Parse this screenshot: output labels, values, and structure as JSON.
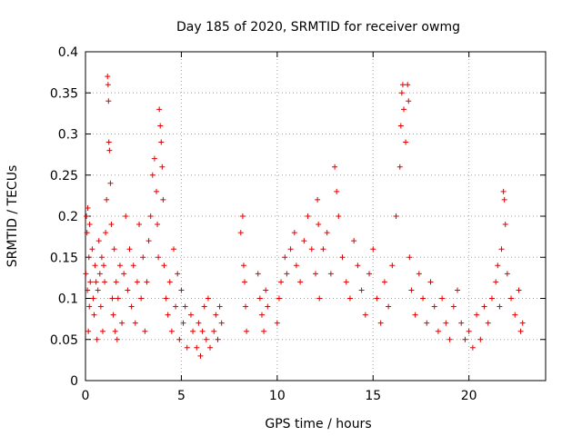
{
  "chart_data": {
    "type": "scatter",
    "title": "Day 185 of 2020, SRMTID for receiver owmg",
    "xlabel": "GPS time / hours",
    "ylabel": "SRMTID / TECUs",
    "xlim": [
      0,
      24
    ],
    "ylim": [
      0,
      0.4
    ],
    "xticks": [
      0,
      5,
      10,
      15,
      20
    ],
    "xtick_labels": [
      "0",
      "5",
      "10",
      "15",
      "20"
    ],
    "yticks": [
      0,
      0.05,
      0.1,
      0.15,
      0.2,
      0.25,
      0.3,
      0.35,
      0.4
    ],
    "ytick_labels": [
      "0",
      "0.05",
      "0.1",
      "0.15",
      "0.2",
      "0.25",
      "0.3",
      "0.35",
      "0.4"
    ],
    "grid": true,
    "marker": "+",
    "color": "#e00000",
    "series": [
      {
        "name": "SRMTID",
        "points": [
          [
            0.02,
            0.13
          ],
          [
            0.05,
            0.2
          ],
          [
            0.08,
            0.18
          ],
          [
            0.1,
            0.11
          ],
          [
            0.12,
            0.21
          ],
          [
            0.15,
            0.06
          ],
          [
            0.18,
            0.15
          ],
          [
            0.2,
            0.09
          ],
          [
            0.22,
            0.19
          ],
          [
            0.25,
            0.12
          ],
          [
            0.35,
            0.16
          ],
          [
            0.4,
            0.1
          ],
          [
            0.45,
            0.08
          ],
          [
            0.5,
            0.14
          ],
          [
            0.55,
            0.12
          ],
          [
            0.6,
            0.05
          ],
          [
            0.65,
            0.11
          ],
          [
            0.7,
            0.17
          ],
          [
            0.75,
            0.13
          ],
          [
            0.8,
            0.09
          ],
          [
            0.85,
            0.15
          ],
          [
            0.9,
            0.06
          ],
          [
            0.95,
            0.14
          ],
          [
            1.0,
            0.12
          ],
          [
            1.05,
            0.18
          ],
          [
            1.1,
            0.22
          ],
          [
            1.15,
            0.37
          ],
          [
            1.18,
            0.36
          ],
          [
            1.2,
            0.34
          ],
          [
            1.22,
            0.29
          ],
          [
            1.25,
            0.28
          ],
          [
            1.3,
            0.24
          ],
          [
            1.35,
            0.19
          ],
          [
            1.4,
            0.1
          ],
          [
            1.45,
            0.08
          ],
          [
            1.5,
            0.16
          ],
          [
            1.55,
            0.06
          ],
          [
            1.6,
            0.12
          ],
          [
            1.65,
            0.05
          ],
          [
            1.7,
            0.1
          ],
          [
            1.8,
            0.14
          ],
          [
            1.9,
            0.07
          ],
          [
            2.0,
            0.13
          ],
          [
            2.1,
            0.2
          ],
          [
            2.2,
            0.11
          ],
          [
            2.3,
            0.16
          ],
          [
            2.4,
            0.09
          ],
          [
            2.5,
            0.14
          ],
          [
            2.6,
            0.07
          ],
          [
            2.7,
            0.12
          ],
          [
            2.8,
            0.19
          ],
          [
            2.9,
            0.1
          ],
          [
            3.0,
            0.15
          ],
          [
            3.1,
            0.06
          ],
          [
            3.2,
            0.12
          ],
          [
            3.3,
            0.17
          ],
          [
            3.4,
            0.2
          ],
          [
            3.5,
            0.25
          ],
          [
            3.6,
            0.27
          ],
          [
            3.7,
            0.23
          ],
          [
            3.75,
            0.19
          ],
          [
            3.8,
            0.15
          ],
          [
            3.85,
            0.33
          ],
          [
            3.9,
            0.31
          ],
          [
            3.95,
            0.29
          ],
          [
            4.0,
            0.26
          ],
          [
            4.05,
            0.22
          ],
          [
            4.1,
            0.14
          ],
          [
            4.2,
            0.1
          ],
          [
            4.3,
            0.08
          ],
          [
            4.4,
            0.12
          ],
          [
            4.5,
            0.06
          ],
          [
            4.6,
            0.16
          ],
          [
            4.7,
            0.09
          ],
          [
            4.8,
            0.13
          ],
          [
            4.9,
            0.05
          ],
          [
            5.0,
            0.11
          ],
          [
            5.1,
            0.07
          ],
          [
            5.2,
            0.09
          ],
          [
            5.3,
            0.04
          ],
          [
            5.5,
            0.08
          ],
          [
            5.6,
            0.06
          ],
          [
            5.8,
            0.04
          ],
          [
            5.9,
            0.07
          ],
          [
            6.0,
            0.03
          ],
          [
            6.1,
            0.06
          ],
          [
            6.2,
            0.09
          ],
          [
            6.3,
            0.05
          ],
          [
            6.4,
            0.1
          ],
          [
            6.5,
            0.04
          ],
          [
            6.7,
            0.06
          ],
          [
            6.8,
            0.08
          ],
          [
            6.9,
            0.05
          ],
          [
            7.0,
            0.09
          ],
          [
            7.1,
            0.07
          ],
          [
            8.1,
            0.18
          ],
          [
            8.2,
            0.2
          ],
          [
            8.25,
            0.14
          ],
          [
            8.3,
            0.12
          ],
          [
            8.35,
            0.09
          ],
          [
            8.4,
            0.06
          ],
          [
            9.0,
            0.13
          ],
          [
            9.1,
            0.1
          ],
          [
            9.2,
            0.08
          ],
          [
            9.3,
            0.06
          ],
          [
            9.4,
            0.11
          ],
          [
            9.5,
            0.09
          ],
          [
            10.0,
            0.07
          ],
          [
            10.1,
            0.1
          ],
          [
            10.2,
            0.12
          ],
          [
            10.4,
            0.15
          ],
          [
            10.5,
            0.13
          ],
          [
            10.7,
            0.16
          ],
          [
            10.9,
            0.18
          ],
          [
            11.0,
            0.14
          ],
          [
            11.2,
            0.12
          ],
          [
            11.4,
            0.17
          ],
          [
            11.6,
            0.2
          ],
          [
            11.8,
            0.16
          ],
          [
            12.0,
            0.13
          ],
          [
            12.1,
            0.22
          ],
          [
            12.15,
            0.19
          ],
          [
            12.2,
            0.1
          ],
          [
            12.4,
            0.16
          ],
          [
            12.6,
            0.18
          ],
          [
            12.8,
            0.13
          ],
          [
            13.0,
            0.26
          ],
          [
            13.1,
            0.23
          ],
          [
            13.2,
            0.2
          ],
          [
            13.4,
            0.15
          ],
          [
            13.6,
            0.12
          ],
          [
            13.8,
            0.1
          ],
          [
            14.0,
            0.17
          ],
          [
            14.2,
            0.14
          ],
          [
            14.4,
            0.11
          ],
          [
            14.6,
            0.08
          ],
          [
            14.8,
            0.13
          ],
          [
            15.0,
            0.16
          ],
          [
            15.2,
            0.1
          ],
          [
            15.4,
            0.07
          ],
          [
            15.6,
            0.12
          ],
          [
            15.8,
            0.09
          ],
          [
            16.0,
            0.14
          ],
          [
            16.2,
            0.2
          ],
          [
            16.4,
            0.26
          ],
          [
            16.45,
            0.31
          ],
          [
            16.5,
            0.35
          ],
          [
            16.55,
            0.36
          ],
          [
            16.6,
            0.33
          ],
          [
            16.7,
            0.29
          ],
          [
            16.8,
            0.36
          ],
          [
            16.85,
            0.34
          ],
          [
            16.9,
            0.15
          ],
          [
            17.0,
            0.11
          ],
          [
            17.2,
            0.08
          ],
          [
            17.4,
            0.13
          ],
          [
            17.6,
            0.1
          ],
          [
            17.8,
            0.07
          ],
          [
            18.0,
            0.12
          ],
          [
            18.2,
            0.09
          ],
          [
            18.4,
            0.06
          ],
          [
            18.6,
            0.1
          ],
          [
            18.8,
            0.07
          ],
          [
            19.0,
            0.05
          ],
          [
            19.2,
            0.09
          ],
          [
            19.4,
            0.11
          ],
          [
            19.6,
            0.07
          ],
          [
            19.8,
            0.05
          ],
          [
            20.0,
            0.06
          ],
          [
            20.2,
            0.04
          ],
          [
            20.4,
            0.08
          ],
          [
            20.6,
            0.05
          ],
          [
            20.8,
            0.09
          ],
          [
            21.0,
            0.07
          ],
          [
            21.2,
            0.1
          ],
          [
            21.4,
            0.12
          ],
          [
            21.5,
            0.14
          ],
          [
            21.6,
            0.09
          ],
          [
            21.7,
            0.16
          ],
          [
            21.8,
            0.23
          ],
          [
            21.85,
            0.22
          ],
          [
            21.9,
            0.19
          ],
          [
            22.0,
            0.13
          ],
          [
            22.2,
            0.1
          ],
          [
            22.4,
            0.08
          ],
          [
            22.6,
            0.11
          ],
          [
            22.7,
            0.06
          ],
          [
            22.8,
            0.07
          ]
        ]
      }
    ]
  }
}
